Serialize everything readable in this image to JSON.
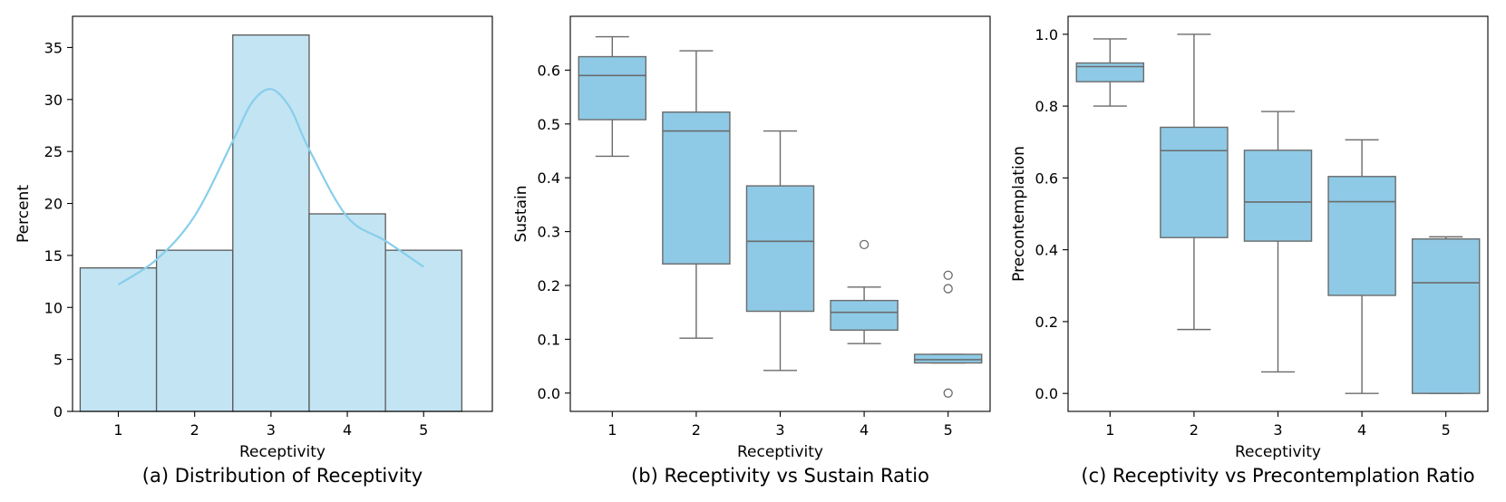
{
  "chart_data": [
    {
      "type": "bar",
      "subtype": "histogram_with_kde",
      "caption": "(a) Distribution of Receptivity",
      "xlabel": "Receptivity",
      "ylabel": "Percent",
      "categories": [
        1,
        2,
        3,
        4,
        5
      ],
      "values": [
        13.8,
        15.5,
        36.2,
        19.0,
        15.5
      ],
      "kde": {
        "x": [
          1.0,
          1.5,
          2.0,
          2.5,
          2.75,
          3.0,
          3.25,
          3.5,
          4.0,
          4.5,
          5.0
        ],
        "y": [
          12.2,
          14.6,
          18.8,
          26.0,
          29.7,
          31.0,
          29.2,
          25.2,
          18.7,
          16.4,
          13.9
        ]
      },
      "xlim": [
        0.4,
        5.9
      ],
      "ylim": [
        0,
        38
      ],
      "yticks": [
        0,
        5,
        10,
        15,
        20,
        25,
        30,
        35
      ],
      "colors": {
        "bar_fill": "#c3e4f3",
        "bar_edge": "#5a5a5a",
        "kde": "#87ceeb"
      }
    },
    {
      "type": "boxplot",
      "caption": "(b) Receptivity vs Sustain Ratio",
      "xlabel": "Receptivity",
      "ylabel": "Sustain",
      "categories": [
        "1",
        "2",
        "3",
        "4",
        "5"
      ],
      "boxes": [
        {
          "whislo": 0.44,
          "q1": 0.508,
          "med": 0.59,
          "q3": 0.625,
          "whishi": 0.662,
          "fliers": []
        },
        {
          "whislo": 0.102,
          "q1": 0.24,
          "med": 0.487,
          "q3": 0.522,
          "whishi": 0.636,
          "fliers": []
        },
        {
          "whislo": 0.042,
          "q1": 0.152,
          "med": 0.282,
          "q3": 0.385,
          "whishi": 0.487,
          "fliers": []
        },
        {
          "whislo": 0.092,
          "q1": 0.117,
          "med": 0.15,
          "q3": 0.172,
          "whishi": 0.197,
          "fliers": [
            0.276
          ]
        },
        {
          "whislo": 0.056,
          "q1": 0.056,
          "med": 0.062,
          "q3": 0.072,
          "whishi": 0.072,
          "fliers": [
            0.0,
            0.194,
            0.219
          ]
        }
      ],
      "ylim": [
        -0.034,
        0.7
      ],
      "yticks": [
        "0.0",
        "0.1",
        "0.2",
        "0.3",
        "0.4",
        "0.5",
        "0.6"
      ],
      "colors": {
        "box_fill": "#8ecae6",
        "line": "#6b6b6b"
      }
    },
    {
      "type": "boxplot",
      "caption": "(c) Receptivity vs Precontemplation Ratio",
      "xlabel": "Receptivity",
      "ylabel": "Precontemplation",
      "categories": [
        "1",
        "2",
        "3",
        "4",
        "5"
      ],
      "boxes": [
        {
          "whislo": 0.8,
          "q1": 0.868,
          "med": 0.91,
          "q3": 0.92,
          "whishi": 0.987,
          "fliers": []
        },
        {
          "whislo": 0.178,
          "q1": 0.434,
          "med": 0.676,
          "q3": 0.741,
          "whishi": 1.0,
          "fliers": []
        },
        {
          "whislo": 0.06,
          "q1": 0.424,
          "med": 0.533,
          "q3": 0.677,
          "whishi": 0.785,
          "fliers": []
        },
        {
          "whislo": 0.0,
          "q1": 0.273,
          "med": 0.534,
          "q3": 0.604,
          "whishi": 0.706,
          "fliers": []
        },
        {
          "whislo": 0.0,
          "q1": 0.0,
          "med": 0.308,
          "q3": 0.43,
          "whishi": 0.436,
          "fliers": []
        }
      ],
      "ylim": [
        -0.05,
        1.05
      ],
      "yticks": [
        "0.0",
        "0.2",
        "0.4",
        "0.6",
        "0.8",
        "1.0"
      ],
      "colors": {
        "box_fill": "#8ecae6",
        "line": "#6b6b6b"
      }
    }
  ]
}
